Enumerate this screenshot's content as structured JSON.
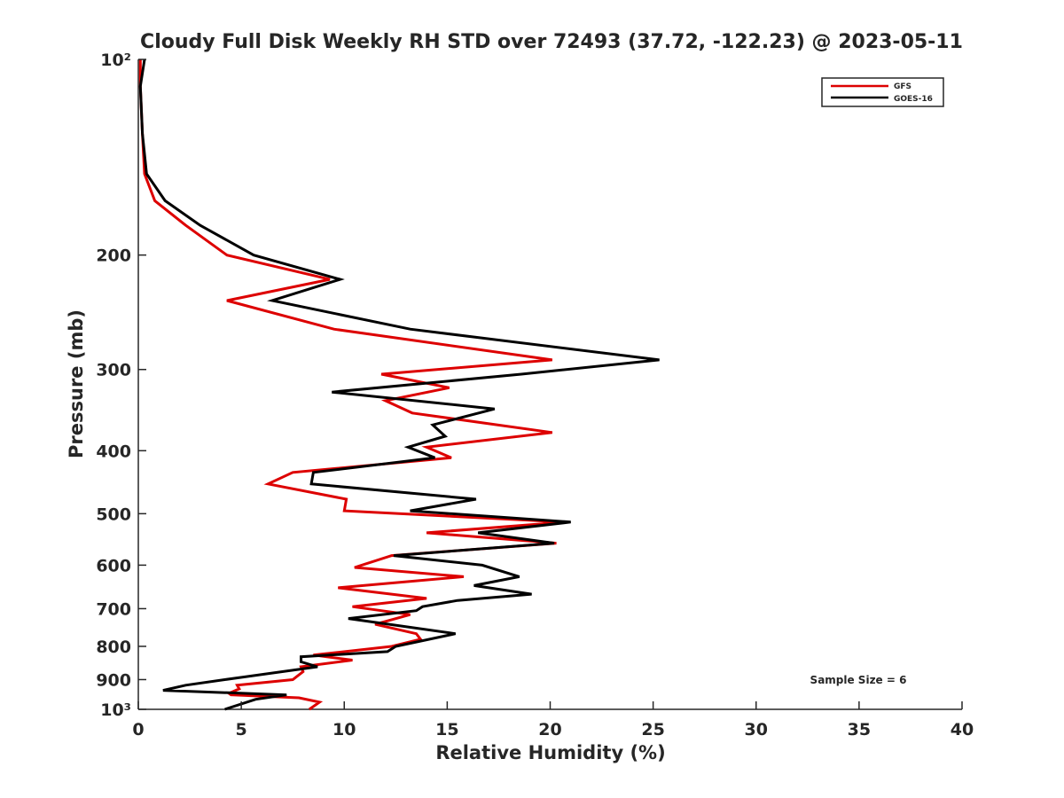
{
  "chart_data": {
    "type": "line",
    "title": "Cloudy Full Disk Weekly RH STD over 72493 (37.72, -122.23) @ 2023-05-11",
    "xlabel": "Relative Humidity (%)",
    "ylabel": "Pressure (mb)",
    "xlim": [
      0,
      40
    ],
    "ylim": [
      100,
      1000
    ],
    "y_scale": "log",
    "y_reversed": true,
    "grid": false,
    "legend_position": "top-right",
    "x_ticks": [
      0,
      5,
      10,
      15,
      20,
      25,
      30,
      35,
      40
    ],
    "x_tick_labels": [
      "0",
      "5",
      "10",
      "15",
      "20",
      "25",
      "30",
      "35",
      "40"
    ],
    "y_ticks": [
      100,
      200,
      300,
      400,
      500,
      600,
      700,
      800,
      900,
      1000
    ],
    "y_tick_labels": [
      "10²",
      "200",
      "300",
      "400",
      "500",
      "600",
      "700",
      "800",
      "900",
      "10³"
    ],
    "annotation": "Sample Size = 6",
    "series": [
      {
        "name": "GFS",
        "color": "#dd0000",
        "x": [
          0.1,
          0.1,
          0.2,
          0.3,
          0.8,
          2.3,
          4.3,
          9.3,
          4.3,
          9.5,
          20.1,
          11.8,
          15.1,
          12.0,
          13.3,
          20.1,
          14.0,
          15.2,
          7.5,
          6.3,
          10.1,
          10.0,
          20.7,
          14.0,
          20.3,
          12.3,
          10.5,
          15.8,
          9.7,
          14.0,
          10.4,
          13.2,
          11.5,
          13.5,
          13.7,
          12.3,
          8.5,
          10.4,
          7.9,
          8.0,
          7.5,
          4.8,
          4.9,
          4.4,
          4.5,
          7.8,
          8.8,
          8.3
        ],
        "y": [
          100,
          110,
          130,
          150,
          165,
          180,
          200,
          218,
          235,
          260,
          290,
          305,
          320,
          335,
          350,
          375,
          395,
          410,
          432,
          450,
          475,
          495,
          515,
          535,
          555,
          580,
          605,
          625,
          650,
          675,
          695,
          715,
          740,
          765,
          780,
          800,
          825,
          840,
          860,
          875,
          900,
          918,
          930,
          945,
          950,
          960,
          975,
          1000
        ]
      },
      {
        "name": "GOES-16",
        "color": "#000000",
        "x": [
          0.3,
          0.1,
          0.2,
          0.4,
          1.3,
          3.0,
          5.6,
          9.8,
          6.5,
          13.2,
          25.3,
          18.6,
          9.4,
          17.3,
          14.3,
          14.9,
          13.1,
          14.4,
          8.5,
          8.4,
          16.4,
          13.2,
          21.0,
          16.5,
          20.2,
          12.4,
          16.7,
          18.5,
          16.3,
          19.1,
          15.5,
          13.8,
          13.5,
          10.2,
          15.4,
          12.5,
          12.1,
          7.9,
          7.9,
          8.7,
          4.2,
          2.3,
          1.2,
          7.2,
          5.7,
          4.2
        ],
        "y": [
          100,
          110,
          130,
          150,
          165,
          180,
          200,
          218,
          235,
          260,
          290,
          305,
          325,
          345,
          365,
          380,
          395,
          410,
          432,
          450,
          475,
          495,
          515,
          535,
          555,
          580,
          600,
          625,
          645,
          665,
          680,
          695,
          705,
          725,
          765,
          800,
          815,
          830,
          845,
          860,
          900,
          918,
          935,
          950,
          965,
          1000
        ]
      }
    ]
  }
}
